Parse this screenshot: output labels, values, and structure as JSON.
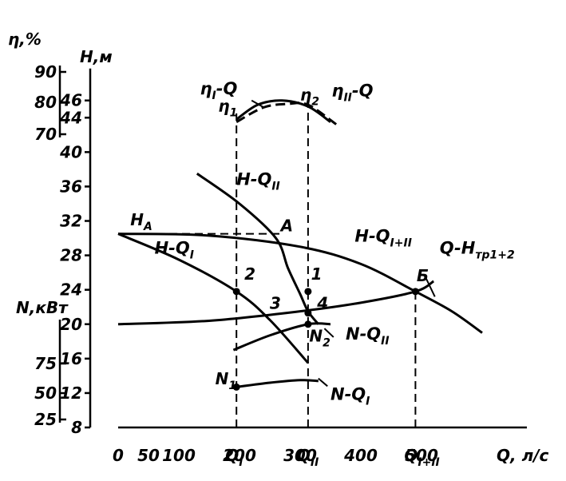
{
  "chart_data": {
    "type": "line",
    "x_axis": {
      "label": "Q, л/с",
      "range": [
        0,
        600
      ],
      "ticks": [
        0,
        50,
        100,
        200,
        300,
        400,
        500
      ],
      "tick_labels": [
        "0",
        "50",
        "100",
        "200",
        "300",
        "400",
        "500"
      ],
      "special_ticks": [
        {
          "label": "Q_I",
          "value": 195
        },
        {
          "label": "Q_II",
          "value": 313
        },
        {
          "label": "Q_I+II",
          "value": 490
        }
      ]
    },
    "h_axis": {
      "label": "H,м",
      "range": [
        8,
        46
      ],
      "ticks": [
        8,
        12,
        16,
        20,
        24,
        28,
        32,
        36,
        40,
        44,
        46
      ],
      "tick_labels": [
        "8",
        "12",
        "16",
        "20",
        "24",
        "28",
        "32",
        "36",
        "40",
        "44",
        "46"
      ]
    },
    "eta_axis": {
      "label": "η,%",
      "ticks": [
        70,
        80,
        90
      ],
      "tick_labels": [
        "70",
        "80",
        "90"
      ]
    },
    "n_axis": {
      "label": "N,кВт",
      "ticks": [
        25,
        50,
        75
      ],
      "tick_labels": [
        "25",
        "50",
        "75"
      ]
    },
    "series": [
      {
        "name": "H-Q_I",
        "label": "H-Q",
        "sub": "I",
        "x": [
          0,
          100,
          195,
          250,
          313
        ],
        "y": [
          30.5,
          27.5,
          23.8,
          20.5,
          15.5
        ]
      },
      {
        "name": "H-Q_II",
        "label": "H-Q",
        "sub": "II",
        "x": [
          130,
          200,
          260,
          280,
          300,
          313,
          330
        ],
        "y": [
          37.5,
          34,
          30,
          26.5,
          23.5,
          21.5,
          20
        ]
      },
      {
        "name": "H-Q_I+II",
        "label": "H-Q",
        "sub": "I+II",
        "x": [
          0,
          150,
          300,
          400,
          490,
          550,
          600
        ],
        "y": [
          30.5,
          30.3,
          29,
          27,
          23.8,
          21.5,
          19
        ]
      },
      {
        "name": "Q-H_тр1+2",
        "label": "Q-H",
        "sub": "тр1+2",
        "x": [
          0,
          150,
          300,
          400,
          490,
          520
        ],
        "y": [
          20,
          20.4,
          21.5,
          22.5,
          23.8,
          25
        ]
      },
      {
        "name": "N-Q_I",
        "label": "N-Q",
        "sub": "I",
        "x": [
          195,
          250,
          300,
          330
        ],
        "y": [
          12.7,
          13.2,
          13.5,
          13.4
        ]
      },
      {
        "name": "N-Q_II",
        "label": "N-Q",
        "sub": "II",
        "x": [
          190,
          250,
          313,
          350
        ],
        "y": [
          17,
          18.7,
          20,
          20
        ]
      },
      {
        "name": "η_I-Q",
        "label": "η-Q",
        "sub": "I",
        "x": [
          195,
          230,
          270,
          313,
          350
        ],
        "y": [
          43.8,
          45.5,
          46,
          45.3,
          43.5
        ]
      },
      {
        "name": "η_II-Q",
        "label": "η-Q",
        "sub": "II",
        "x": [
          195,
          240,
          280,
          313,
          360
        ],
        "y": [
          43.5,
          45.2,
          45.6,
          45.5,
          43.2
        ]
      }
    ],
    "annotations": [
      {
        "text": "H",
        "sub": "A",
        "x": 20,
        "y": 31.5
      },
      {
        "text": "A",
        "x": 268,
        "y": 30.8
      },
      {
        "text": "Б",
        "x": 492,
        "y": 25
      },
      {
        "text": "1",
        "x": 318,
        "y": 25.2
      },
      {
        "text": "2",
        "x": 208,
        "y": 25.2
      },
      {
        "text": "3",
        "x": 250,
        "y": 21.8
      },
      {
        "text": "4",
        "x": 328,
        "y": 21.8
      },
      {
        "text": "N",
        "sub": "1",
        "x": 160,
        "y": 13
      },
      {
        "text": "N",
        "sub": "2",
        "x": 315,
        "y": 18
      },
      {
        "text": "η",
        "sub": "1",
        "x": 165,
        "y": 44.7
      },
      {
        "text": "η",
        "sub": "2",
        "x": 300,
        "y": 46
      }
    ],
    "points": [
      {
        "name": "point-2",
        "x": 195,
        "y": 23.8
      },
      {
        "name": "point-1",
        "x": 313,
        "y": 23.8
      },
      {
        "name": "point-4",
        "x": 313,
        "y": 21.3
      },
      {
        "name": "point-B",
        "x": 490,
        "y": 23.8
      },
      {
        "name": "point-N1",
        "x": 195,
        "y": 12.7
      },
      {
        "name": "point-N2",
        "x": 313,
        "y": 20
      }
    ],
    "dashed_lines": [
      {
        "name": "HA-dashed",
        "from": [
          0,
          30.5
        ],
        "to": [
          268,
          30.5
        ]
      },
      {
        "name": "QI-dashed",
        "from": [
          195,
          8
        ],
        "to": [
          195,
          44.5
        ]
      },
      {
        "name": "QII-dashed",
        "from": [
          313,
          8
        ],
        "to": [
          313,
          45.5
        ]
      },
      {
        "name": "QI+II-dashed",
        "from": [
          490,
          8
        ],
        "to": [
          490,
          23.8
        ]
      }
    ]
  }
}
